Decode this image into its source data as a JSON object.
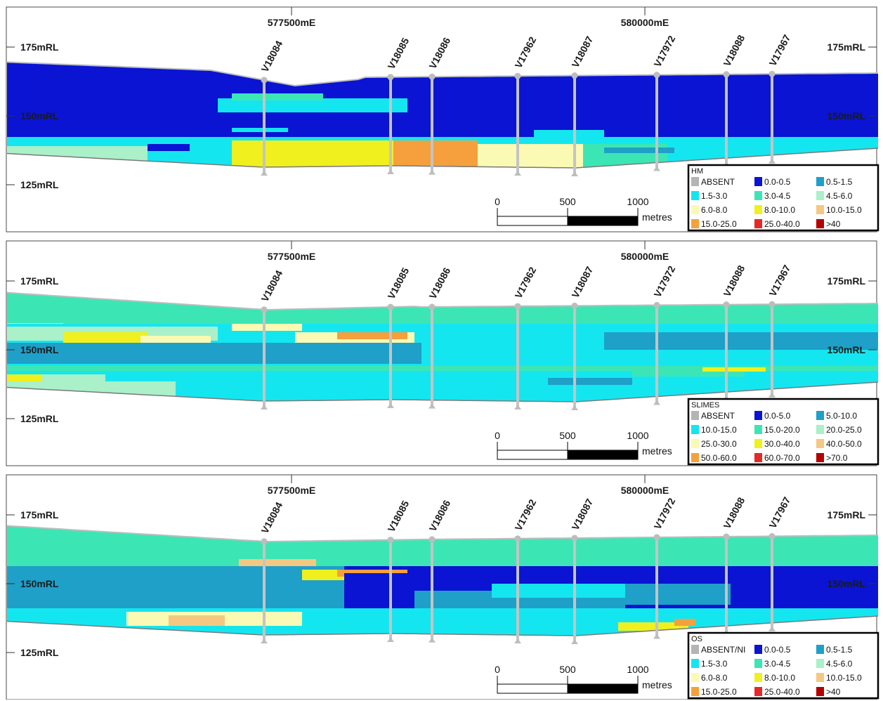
{
  "panels": [
    {
      "id": "hm",
      "legend": {
        "title": "HM",
        "items": [
          {
            "label": "ABSENT",
            "color": "#b4b4b4"
          },
          {
            "label": "0.0-0.5",
            "color": "#0a14d2"
          },
          {
            "label": "0.5-1.5",
            "color": "#1ea0c8"
          },
          {
            "label": "1.5-3.0",
            "color": "#14e6f0"
          },
          {
            "label": "3.0-4.5",
            "color": "#3ce6b4"
          },
          {
            "label": "4.5-6.0",
            "color": "#aaf0c8"
          },
          {
            "label": "6.0-8.0",
            "color": "#fafab4"
          },
          {
            "label": "8.0-10.0",
            "color": "#f0f01e"
          },
          {
            "label": "10.0-15.0",
            "color": "#f5c882"
          },
          {
            "label": "15.0-25.0",
            "color": "#f5a03c"
          },
          {
            "label": "25.0-40.0",
            "color": "#e62828"
          },
          {
            "label": ">40",
            "color": "#b40000"
          }
        ]
      }
    },
    {
      "id": "slimes",
      "legend": {
        "title": "SLIMES",
        "items": [
          {
            "label": "ABSENT",
            "color": "#b4b4b4"
          },
          {
            "label": "0.0-5.0",
            "color": "#0a14d2"
          },
          {
            "label": "5.0-10.0",
            "color": "#1ea0c8"
          },
          {
            "label": "10.0-15.0",
            "color": "#14e6f0"
          },
          {
            "label": "15.0-20.0",
            "color": "#3ce6b4"
          },
          {
            "label": "20.0-25.0",
            "color": "#aaf0c8"
          },
          {
            "label": "25.0-30.0",
            "color": "#fafab4"
          },
          {
            "label": "30.0-40.0",
            "color": "#f0f01e"
          },
          {
            "label": "40.0-50.0",
            "color": "#f5c882"
          },
          {
            "label": "50.0-60.0",
            "color": "#f5a03c"
          },
          {
            "label": "60.0-70.0",
            "color": "#e62828"
          },
          {
            "label": ">70.0",
            "color": "#b40000"
          }
        ]
      }
    },
    {
      "id": "os",
      "legend": {
        "title": "OS",
        "items": [
          {
            "label": "ABSENT/NI",
            "color": "#b4b4b4"
          },
          {
            "label": "0.0-0.5",
            "color": "#0a14d2"
          },
          {
            "label": "0.5-1.5",
            "color": "#1ea0c8"
          },
          {
            "label": "1.5-3.0",
            "color": "#14e6f0"
          },
          {
            "label": "3.0-4.5",
            "color": "#3ce6b4"
          },
          {
            "label": "4.5-6.0",
            "color": "#aaf0c8"
          },
          {
            "label": "6.0-8.0",
            "color": "#fafab4"
          },
          {
            "label": "8.0-10.0",
            "color": "#f0f01e"
          },
          {
            "label": "10.0-15.0",
            "color": "#f5c882"
          },
          {
            "label": "15.0-25.0",
            "color": "#f5a03c"
          },
          {
            "label": "25.0-40.0",
            "color": "#e62828"
          },
          {
            "label": ">40",
            "color": "#b40000"
          }
        ]
      }
    }
  ],
  "easting_labels": [
    "577500mE",
    "580000mE"
  ],
  "rl_labels": [
    "175mRL",
    "150mRL",
    "125mRL"
  ],
  "drillholes": [
    "V18084",
    "V18085",
    "V18086",
    "V17962",
    "V18087",
    "V17972",
    "V18088",
    "V17967"
  ],
  "scale_bar": {
    "ticks": [
      "0",
      "500",
      "1000"
    ],
    "unit": "metres"
  }
}
